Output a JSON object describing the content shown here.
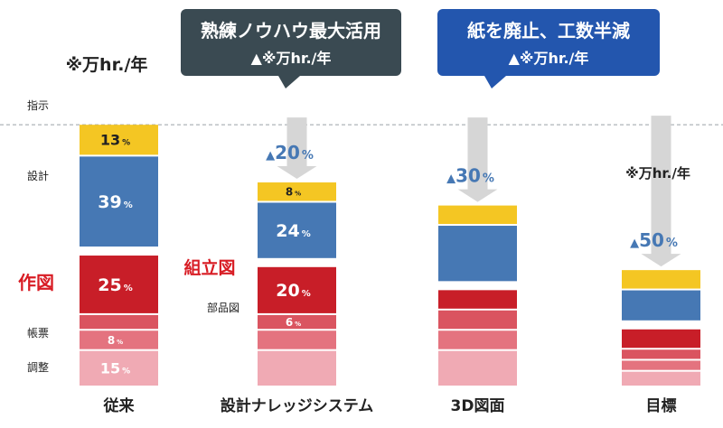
{
  "chart_data": {
    "type": "bar",
    "stacked": true,
    "unit_label": "※万hr./年",
    "colors": {
      "指示": "#f4c623",
      "設計": "#4678b4",
      "組立図": "#c81e28",
      "部品図": "#da5460",
      "帳票": "#e4737f",
      "調整": "#f0aab4",
      "callout_dark": "#3a4a52",
      "callout_blue": "#2356ae",
      "reduction_text": "#4678b4",
      "arrow": "#d6d6d6",
      "accent_red": "#d81c24"
    },
    "categories": [
      "従来",
      "設計ナレッジシステム",
      "3D図面",
      "目標"
    ],
    "segments": [
      "指示",
      "設計",
      "組立図",
      "部品図",
      "帳票",
      "調整"
    ],
    "bars": [
      {
        "category": "従来",
        "values": [
          13,
          39,
          25,
          6,
          8,
          15
        ],
        "labels": [
          "13%",
          "39%",
          "25%",
          "",
          "8%",
          "15%"
        ]
      },
      {
        "category": "設計ナレッジシステム",
        "values": [
          8,
          24,
          20,
          6,
          8,
          15
        ],
        "labels": [
          "8%",
          "24%",
          "20%",
          "6%",
          "",
          ""
        ],
        "reduction": "▲20%"
      },
      {
        "category": "3D図面",
        "values": [
          8,
          24,
          8,
          8,
          8,
          15
        ],
        "labels": [
          "",
          "",
          "",
          "",
          "",
          ""
        ],
        "reduction": "▲30%"
      },
      {
        "category": "目標",
        "values": [
          8,
          13,
          8,
          4,
          4,
          6
        ],
        "labels": [
          "",
          "",
          "",
          "",
          "",
          ""
        ],
        "reduction": "▲50%"
      }
    ],
    "row_labels": {
      "指示": "指示",
      "設計": "設計",
      "帳票": "帳票",
      "調整": "調整",
      "作図": "作図",
      "組立図": "組立図",
      "部品図": "部品図"
    },
    "callouts": [
      {
        "title": "熟練ノウハウ最大活用",
        "sub": "▲※万hr./年"
      },
      {
        "title": "紙を廃止、工数半減",
        "sub": "▲※万hr./年"
      }
    ]
  }
}
